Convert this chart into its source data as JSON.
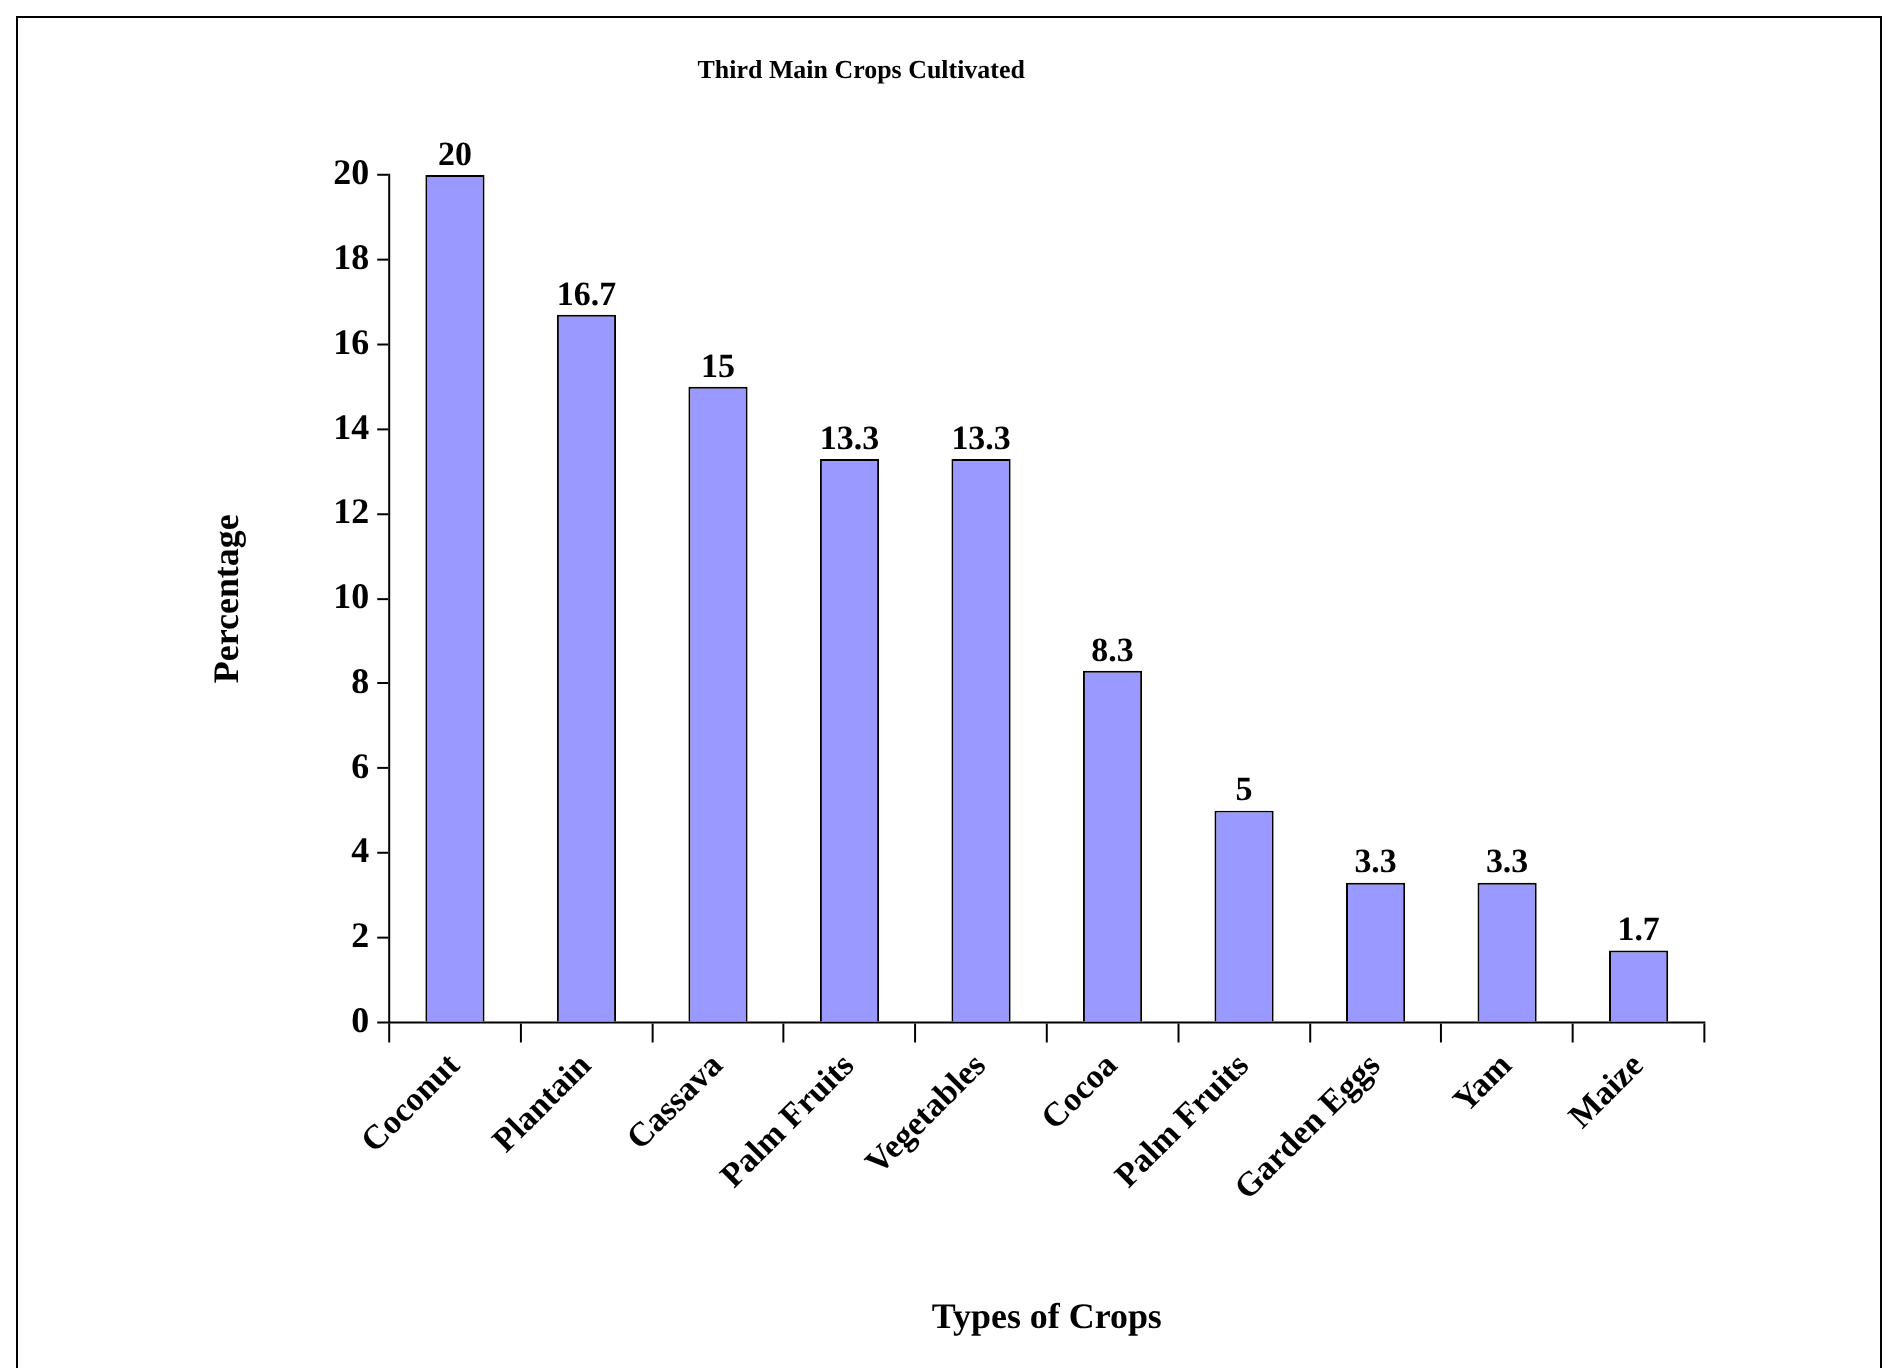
{
  "chart_data": {
    "type": "bar",
    "title": "Third Main Crops Cultivated",
    "xlabel": "Types of Crops",
    "ylabel": "Percentage",
    "categories": [
      "Coconut",
      "Plantain",
      "Cassava",
      "Palm Fruits",
      "Vegetables",
      "Cocoa",
      "Palm Fruits",
      "Garden Eggs",
      "Yam",
      "Maize"
    ],
    "values": [
      20,
      16.7,
      15,
      13.3,
      13.3,
      8.3,
      5,
      3.3,
      3.3,
      1.7
    ],
    "color": "#9999ff",
    "ylim": [
      0,
      20
    ],
    "yticks": [
      0,
      2,
      4,
      6,
      8,
      10,
      12,
      14,
      16,
      18,
      20
    ],
    "data_labels": true
  }
}
